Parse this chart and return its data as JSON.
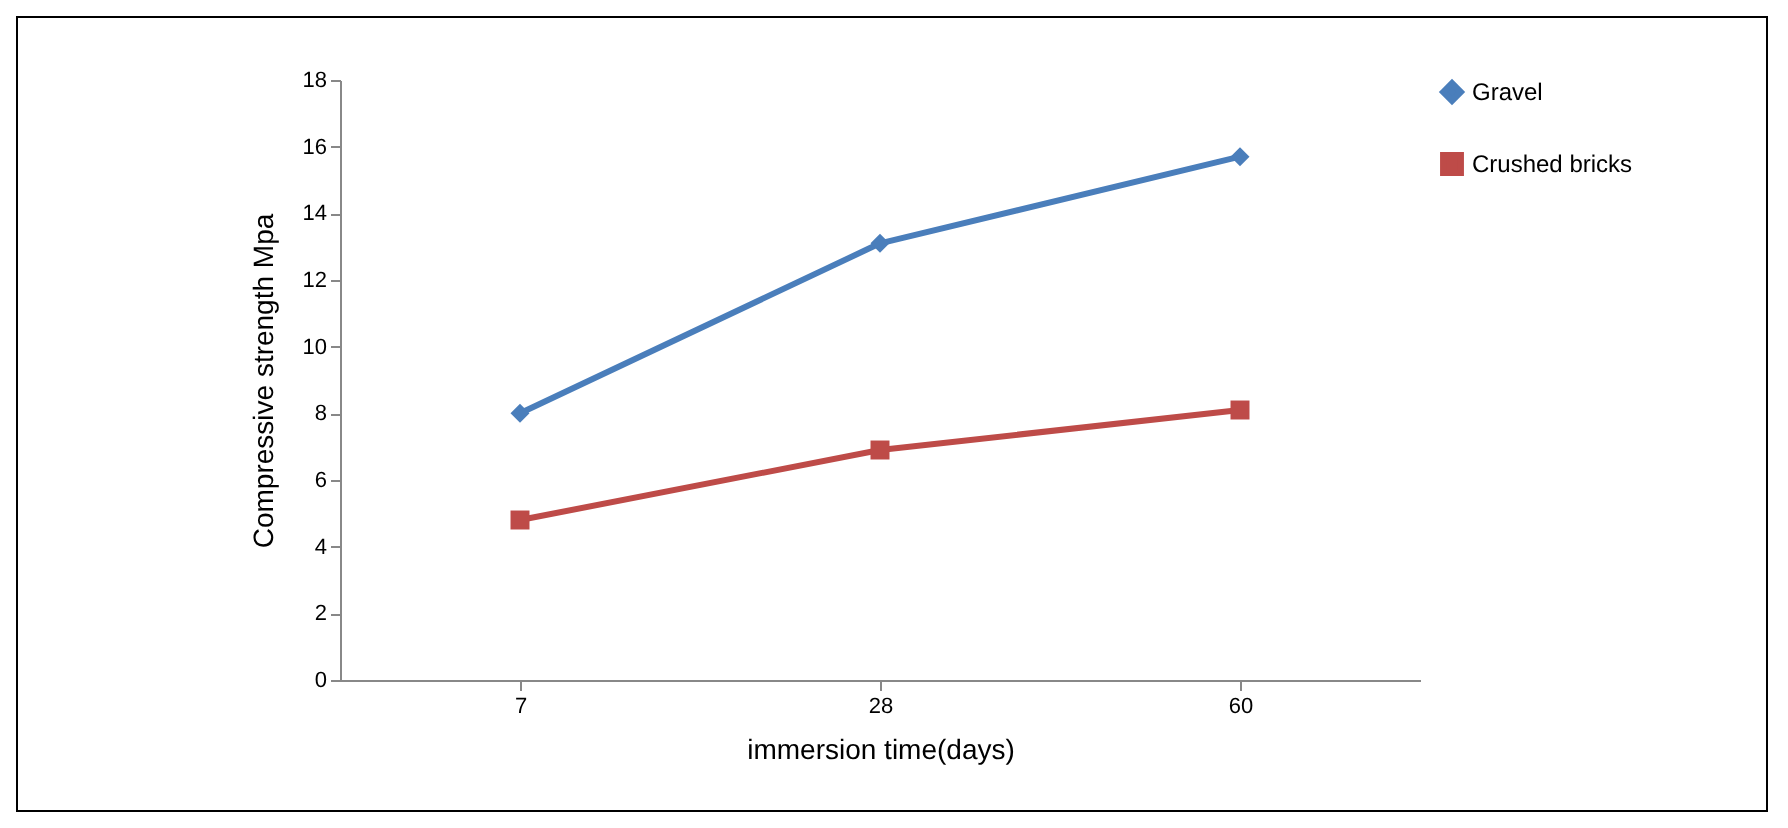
{
  "chart_data": {
    "type": "line",
    "xlabel": "immersion time(days)",
    "ylabel": "Compressive strength Mpa",
    "categories": [
      "7",
      "28",
      "60"
    ],
    "series": [
      {
        "name": "Gravel",
        "color": "#4a7ebb",
        "marker": "diamond",
        "values": [
          8,
          13.1,
          15.7
        ]
      },
      {
        "name": "Crushed bricks",
        "color": "#be4b48",
        "marker": "square",
        "values": [
          4.8,
          6.9,
          8.1
        ]
      }
    ],
    "ylim": [
      0,
      18
    ],
    "yticks": [
      0,
      2,
      4,
      6,
      8,
      10,
      12,
      14,
      16,
      18
    ],
    "grid": false,
    "legend": "right",
    "line_style": "solid"
  }
}
